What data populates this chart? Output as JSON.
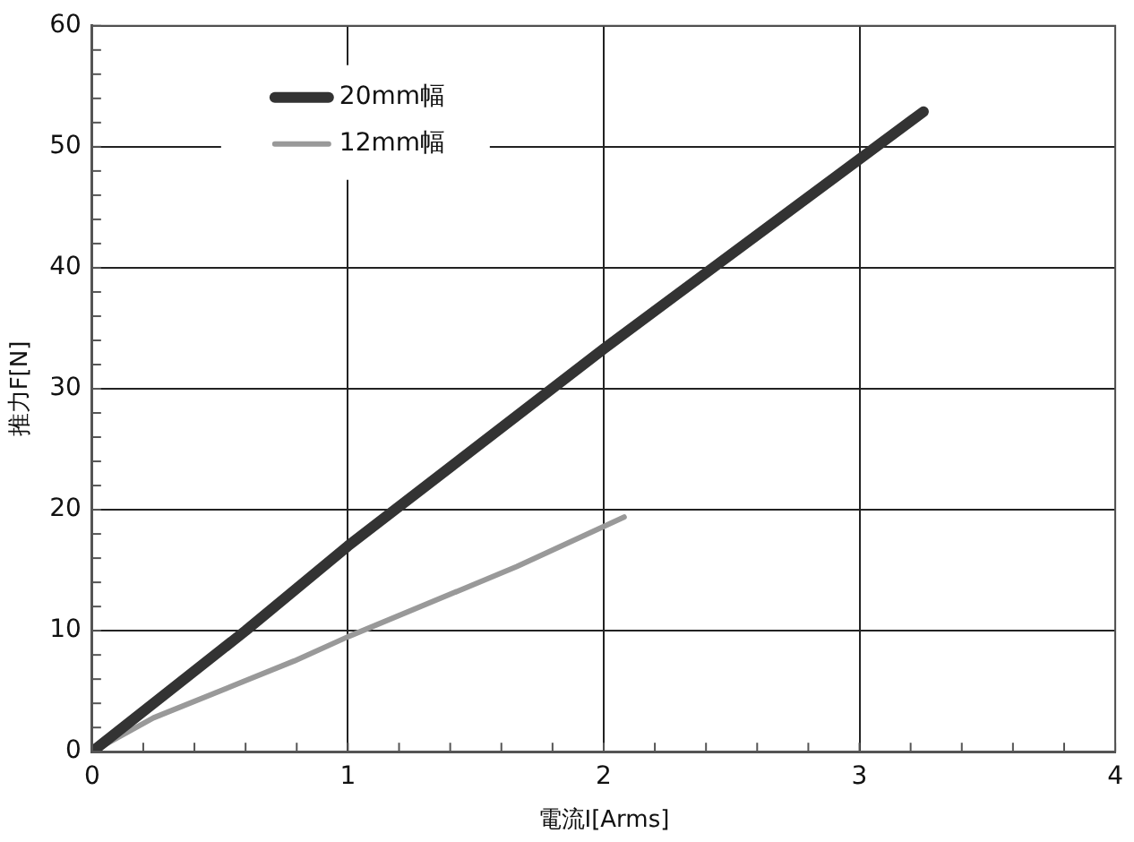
{
  "chart_data": {
    "type": "line",
    "xlabel": "電流I[Arms]",
    "ylabel": "推力F[N]",
    "xlim": [
      0,
      4
    ],
    "ylim": [
      0,
      60
    ],
    "xticks": [
      0,
      {
        "value": 0.2,
        "label": null
      },
      {
        "value": 0.4,
        "label": null
      },
      {
        "value": 0.6,
        "label": null
      },
      {
        "value": 0.8,
        "label": null
      },
      1,
      {
        "value": 1.2,
        "label": null
      },
      {
        "value": 1.4,
        "label": null
      },
      {
        "value": 1.6,
        "label": null
      },
      {
        "value": 1.8,
        "label": null
      },
      2,
      {
        "value": 2.2,
        "label": null
      },
      {
        "value": 2.4,
        "label": null
      },
      {
        "value": 2.6,
        "label": null
      },
      {
        "value": 2.8,
        "label": null
      },
      3,
      {
        "value": 3.2,
        "label": null
      },
      {
        "value": 3.4,
        "label": null
      },
      {
        "value": 3.6,
        "label": null
      },
      {
        "value": 3.8,
        "label": null
      },
      4
    ],
    "yticks": [
      0,
      {
        "value": 2,
        "label": null
      },
      {
        "value": 4,
        "label": null
      },
      {
        "value": 6,
        "label": null
      },
      {
        "value": 8,
        "label": null
      },
      10,
      {
        "value": 12,
        "label": null
      },
      {
        "value": 14,
        "label": null
      },
      {
        "value": 16,
        "label": null
      },
      {
        "value": 18,
        "label": null
      },
      20,
      {
        "value": 22,
        "label": null
      },
      {
        "value": 24,
        "label": null
      },
      {
        "value": 26,
        "label": null
      },
      {
        "value": 28,
        "label": null
      },
      30,
      {
        "value": 32,
        "label": null
      },
      {
        "value": 34,
        "label": null
      },
      {
        "value": 36,
        "label": null
      },
      {
        "value": 38,
        "label": null
      },
      40,
      {
        "value": 42,
        "label": null
      },
      {
        "value": 44,
        "label": null
      },
      {
        "value": 46,
        "label": null
      },
      {
        "value": 48,
        "label": null
      },
      50,
      {
        "value": 52,
        "label": null
      },
      {
        "value": 54,
        "label": null
      },
      {
        "value": 56,
        "label": null
      },
      {
        "value": 58,
        "label": null
      },
      60
    ],
    "grid": true,
    "legend": "top left",
    "marker": "none",
    "line_style": "solid",
    "series": [
      {
        "name": "20mm幅",
        "color": "#333333",
        "x": [
          0,
          0.6,
          1,
          2,
          3.25
        ],
        "values": [
          0,
          10,
          17,
          33.3,
          52.9
        ]
      },
      {
        "name": "12mm幅",
        "color": "#999999",
        "x": [
          0,
          0.24,
          0.79,
          1,
          1.66,
          2.08
        ],
        "values": [
          0,
          2.8,
          7.5,
          9.5,
          15.3,
          19.4
        ]
      }
    ]
  }
}
